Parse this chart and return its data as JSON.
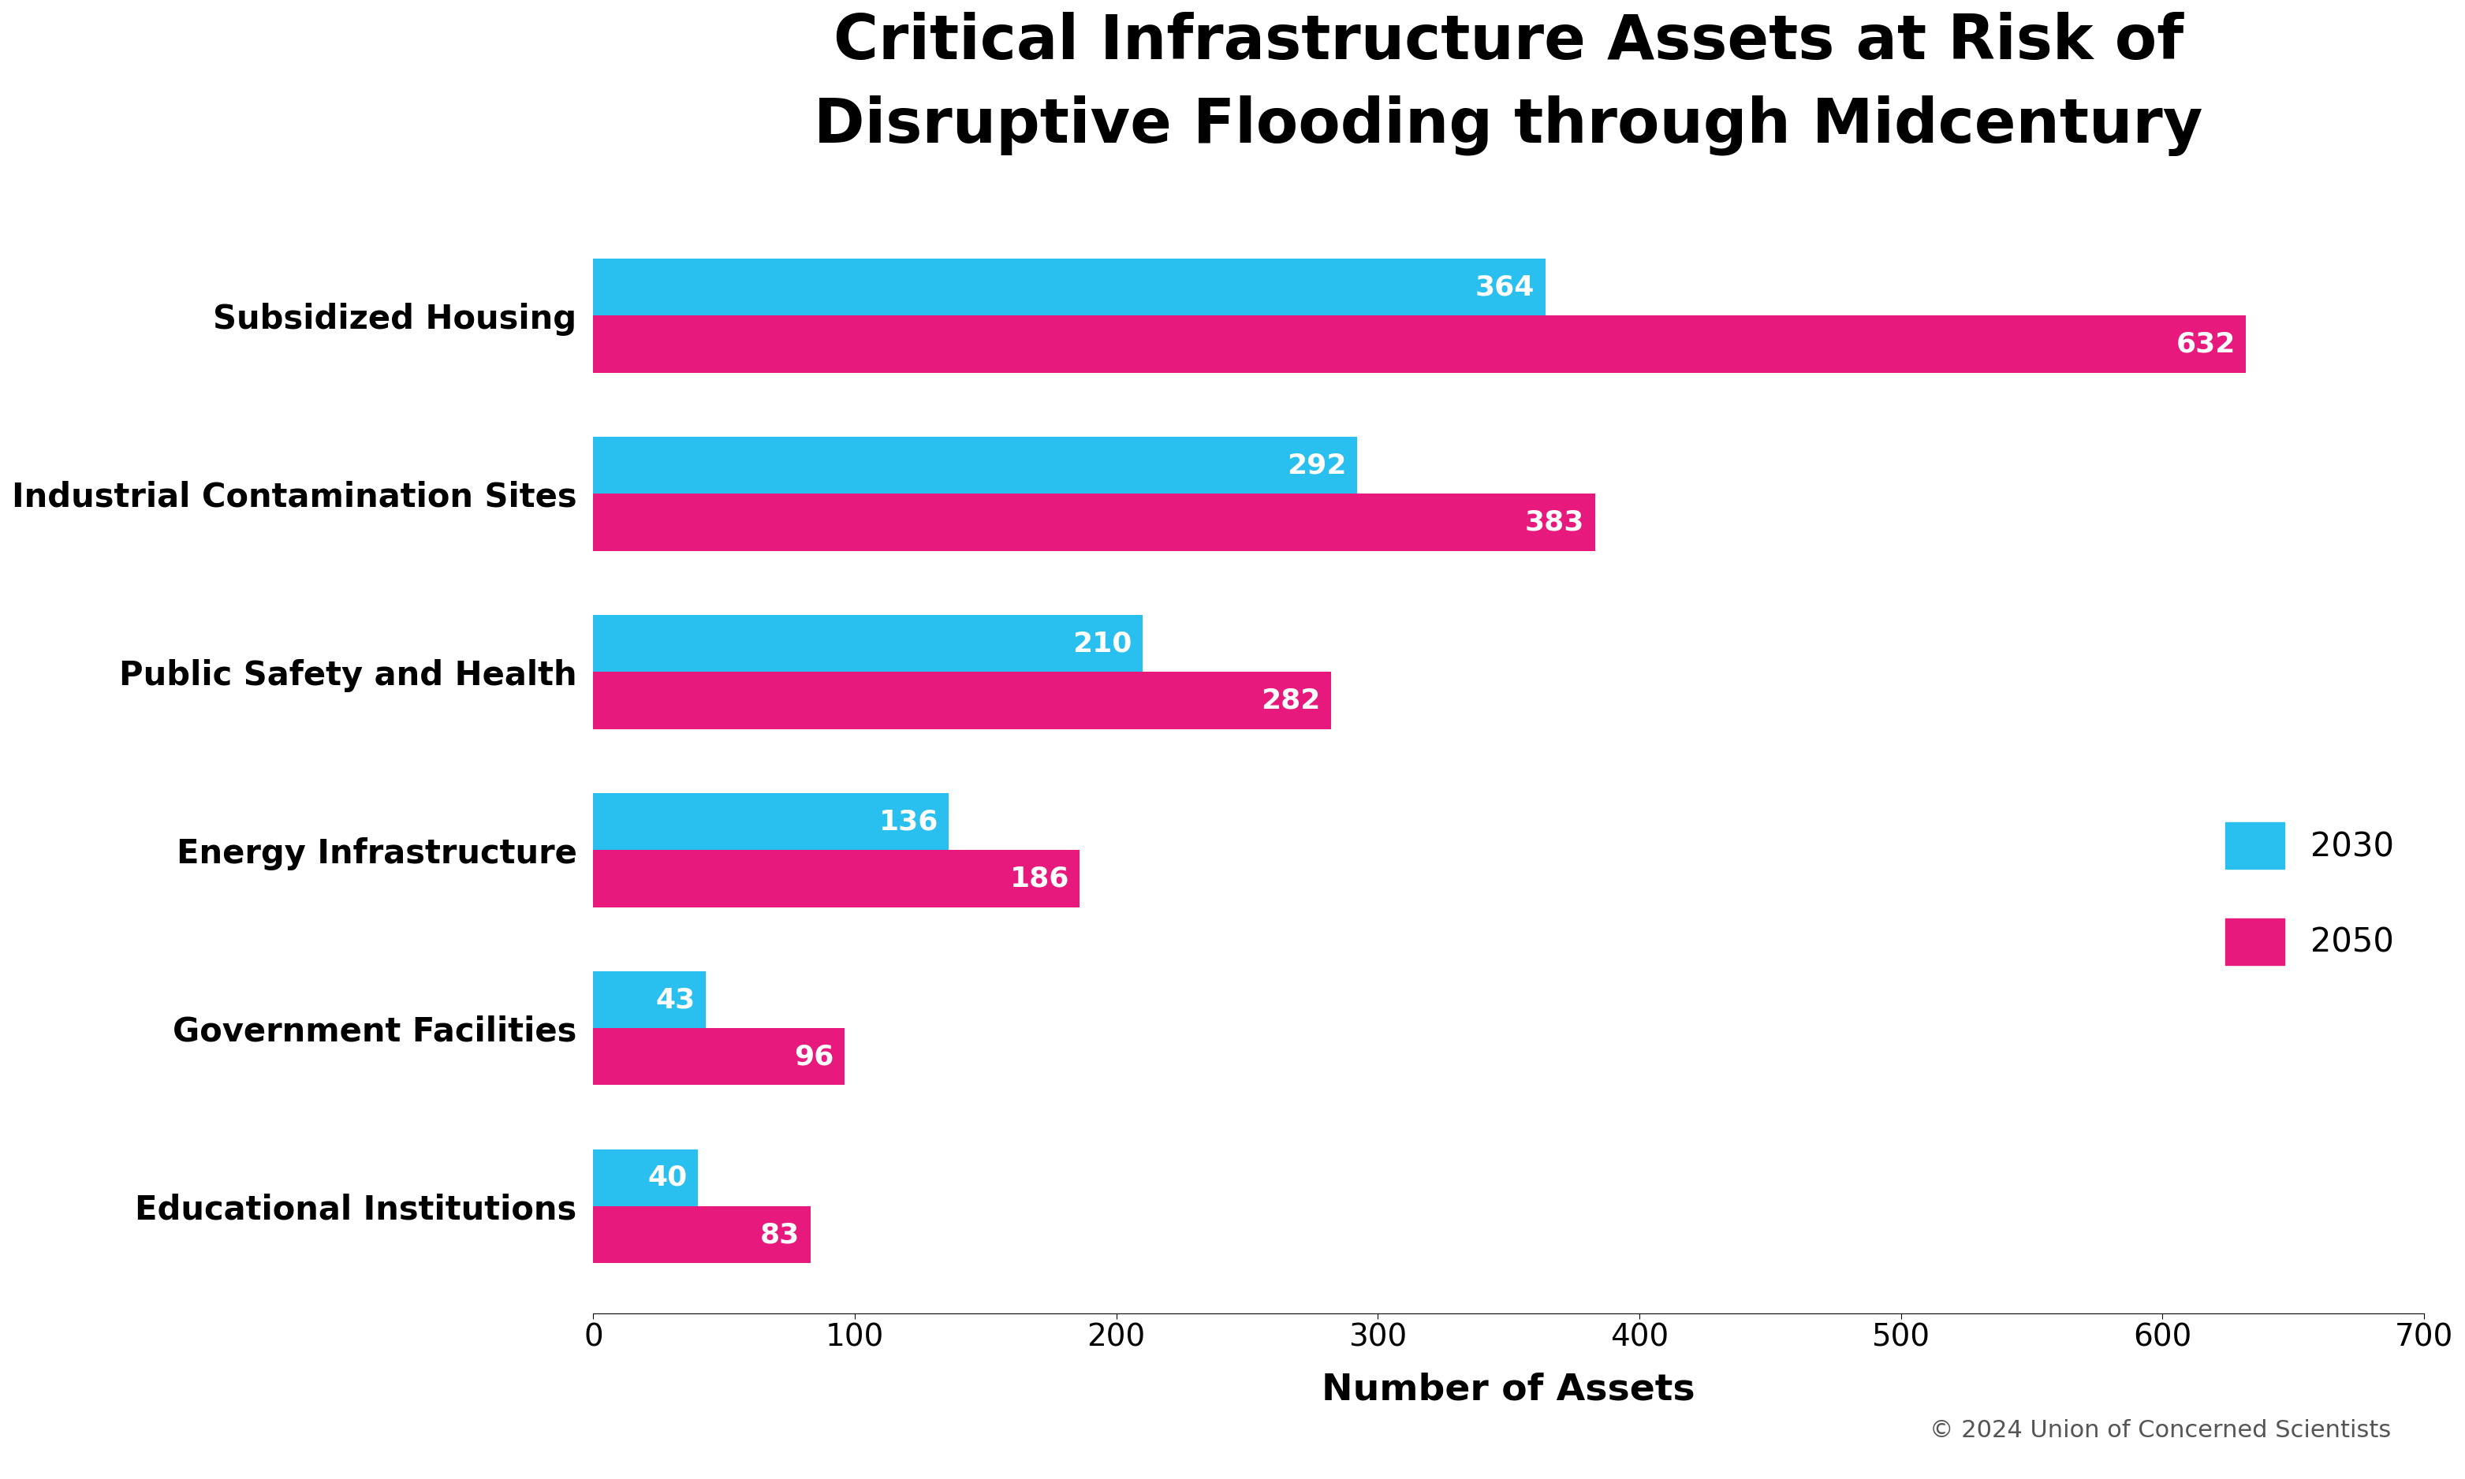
{
  "title": "Critical Infrastructure Assets at Risk of\nDisruptive Flooding through Midcentury",
  "categories": [
    "Subsidized Housing",
    "Industrial Contamination Sites",
    "Public Safety and Health",
    "Energy Infrastructure",
    "Government Facilities",
    "Educational Institutions"
  ],
  "values_2030": [
    364,
    292,
    210,
    136,
    43,
    40
  ],
  "values_2050": [
    632,
    383,
    282,
    186,
    96,
    83
  ],
  "color_2030": "#29BFEF",
  "color_2050": "#E8197D",
  "xlabel": "Number of Assets",
  "xlim": [
    0,
    700
  ],
  "xticks": [
    0,
    100,
    200,
    300,
    400,
    500,
    600,
    700
  ],
  "bar_height": 0.32,
  "background_color": "#FFFFFF",
  "title_fontsize": 56,
  "label_fontsize": 30,
  "tick_fontsize": 28,
  "annotation_fontsize": 26,
  "legend_fontsize": 30,
  "xlabel_fontsize": 34,
  "annotation_color": "#FFFFFF",
  "copyright_text": "© 2024 Union of Concerned Scientists",
  "copyright_fontsize": 22
}
